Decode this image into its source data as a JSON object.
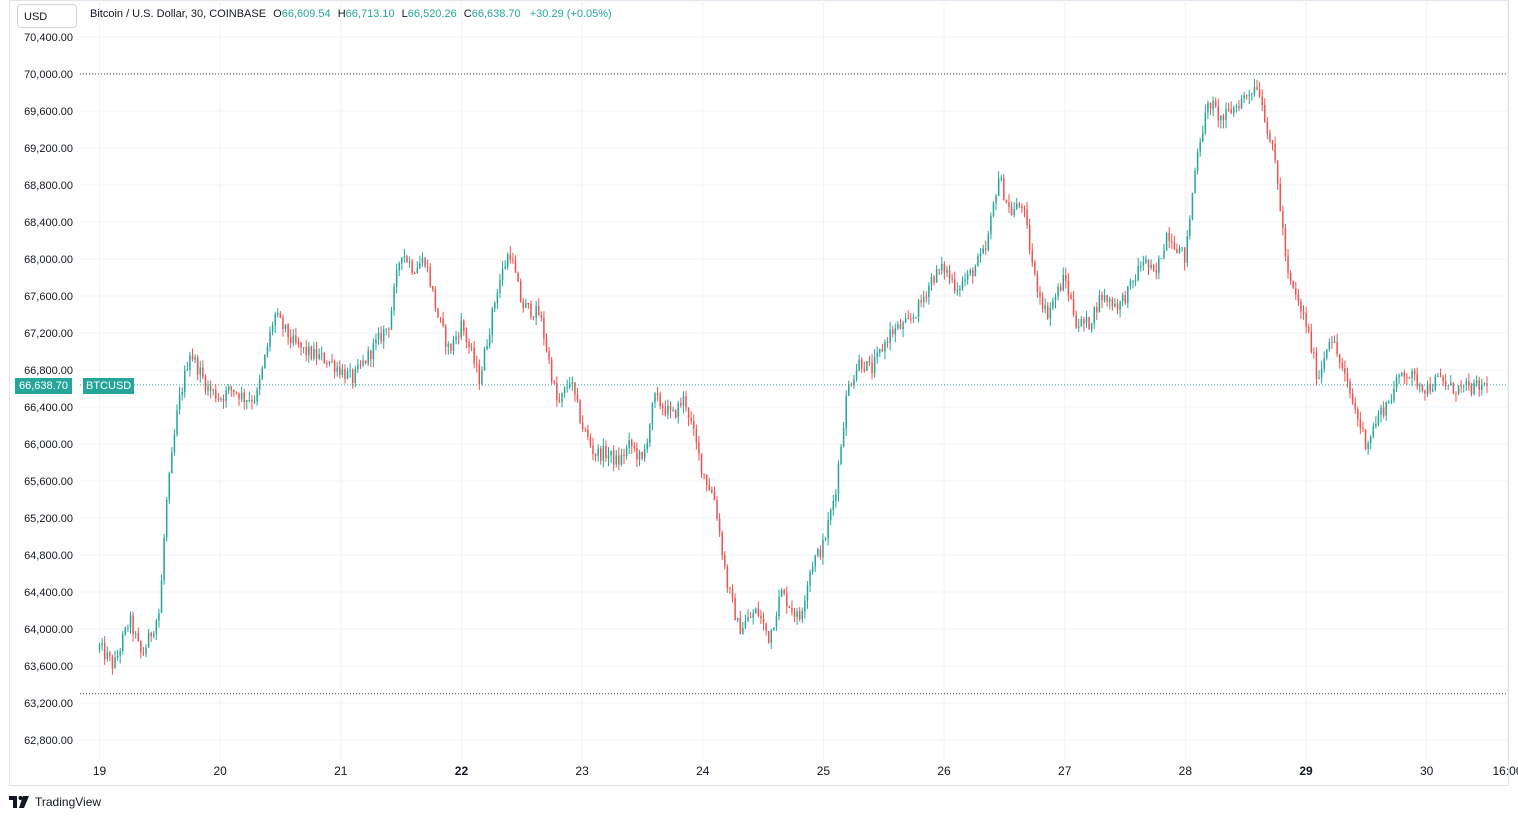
{
  "currency_button": "USD",
  "legend": {
    "symbol": "Bitcoin / U.S. Dollar, 30, COINBASE",
    "open_label": "O",
    "open": "66,609.54",
    "high_label": "H",
    "high": "66,713.10",
    "low_label": "L",
    "low": "66,520.26",
    "close_label": "C",
    "close": "66,638.70",
    "change": "+30.29 (+0.05%)"
  },
  "last_price_badge": "66,638.70",
  "symbol_badge": "BTCUSD",
  "brand": "TradingView",
  "colors": {
    "up": "#26a69a",
    "down": "#ef5350",
    "grid": "#f0f3fa",
    "text": "#131722"
  },
  "chart_data": {
    "type": "candlestick",
    "interval": "30",
    "ylim": [
      62600,
      70600
    ],
    "yticks": [
      62800,
      63200,
      63600,
      64000,
      64400,
      64800,
      65200,
      65600,
      66000,
      66400,
      66800,
      67200,
      67600,
      68000,
      68400,
      68800,
      69200,
      69600,
      70000,
      70400
    ],
    "ytick_labels": [
      "62,800.00",
      "63,200.00",
      "63,600.00",
      "64,000.00",
      "64,400.00",
      "64,800.00",
      "65,200.00",
      "65,600.00",
      "66,000.00",
      "66,400.00",
      "66,800.00",
      "67,200.00",
      "67,600.00",
      "68,000.00",
      "68,400.00",
      "68,800.00",
      "69,200.00",
      "69,600.00",
      "70,000.00",
      "70,400.00"
    ],
    "x_labels": [
      {
        "label": "19",
        "day": 0,
        "bold": false
      },
      {
        "label": "20",
        "day": 1,
        "bold": false
      },
      {
        "label": "21",
        "day": 2,
        "bold": false
      },
      {
        "label": "22",
        "day": 3,
        "bold": true
      },
      {
        "label": "23",
        "day": 4,
        "bold": false
      },
      {
        "label": "24",
        "day": 5,
        "bold": false
      },
      {
        "label": "25",
        "day": 6,
        "bold": false
      },
      {
        "label": "26",
        "day": 7,
        "bold": false
      },
      {
        "label": "27",
        "day": 8,
        "bold": false
      },
      {
        "label": "28",
        "day": 9,
        "bold": false
      },
      {
        "label": "29",
        "day": 10,
        "bold": true
      },
      {
        "label": "30",
        "day": 11,
        "bold": false
      },
      {
        "label": "16:00",
        "day": 11.67,
        "bold": false
      }
    ],
    "reference_lines": [
      70000,
      63300
    ],
    "last_price": 66638.7,
    "path_days": [
      0,
      0.12,
      0.25,
      0.35,
      0.5,
      0.55,
      0.65,
      0.75,
      0.9,
      1.0,
      1.1,
      1.2,
      1.3,
      1.45,
      1.6,
      1.7,
      1.9,
      2.1,
      2.2,
      2.4,
      2.5,
      2.6,
      2.7,
      2.8,
      2.9,
      3.0,
      3.15,
      3.3,
      3.4,
      3.5,
      3.65,
      3.8,
      3.9,
      4.0,
      4.1,
      4.2,
      4.3,
      4.4,
      4.5,
      4.6,
      4.75,
      4.85,
      5.0,
      5.1,
      5.2,
      5.3,
      5.45,
      5.55,
      5.65,
      5.8,
      5.9,
      6.0,
      6.1,
      6.2,
      6.3,
      6.4,
      6.55,
      6.7,
      6.8,
      6.9,
      7.0,
      7.1,
      7.2,
      7.35,
      7.45,
      7.55,
      7.65,
      7.75,
      7.85,
      8.0,
      8.1,
      8.2,
      8.3,
      8.45,
      8.55,
      8.65,
      8.75,
      8.85,
      9.0,
      9.1,
      9.2,
      9.3,
      9.45,
      9.6,
      9.75,
      9.85,
      10.0,
      10.1,
      10.2,
      10.3,
      10.4,
      10.5,
      10.6,
      10.7,
      10.8,
      10.9,
      11.0,
      11.1,
      11.2,
      11.3,
      11.4,
      11.5
    ],
    "path_prices": [
      63800,
      63600,
      64100,
      63700,
      64200,
      65300,
      66400,
      67000,
      66600,
      66500,
      66600,
      66500,
      66500,
      67400,
      67100,
      67000,
      66900,
      66700,
      66900,
      67300,
      68100,
      67900,
      68000,
      67400,
      67000,
      67300,
      66700,
      67700,
      68100,
      67500,
      67400,
      66400,
      66700,
      66200,
      65900,
      65900,
      65800,
      66000,
      65800,
      66500,
      66300,
      66500,
      65700,
      65400,
      64500,
      64000,
      64200,
      63900,
      64400,
      64100,
      64700,
      64900,
      65500,
      66600,
      66900,
      66800,
      67200,
      67300,
      67500,
      67800,
      67900,
      67700,
      67800,
      68100,
      68900,
      68500,
      68600,
      67800,
      67400,
      67800,
      67300,
      67300,
      67600,
      67500,
      67700,
      68000,
      67800,
      68300,
      68000,
      69200,
      69700,
      69500,
      69700,
      69900,
      69000,
      67800,
      67300,
      66700,
      67200,
      66800,
      66400,
      66000,
      66300,
      66500,
      66800,
      66700,
      66600,
      66700,
      66600,
      66600,
      66600,
      66638.7
    ],
    "candle_count": 538
  }
}
